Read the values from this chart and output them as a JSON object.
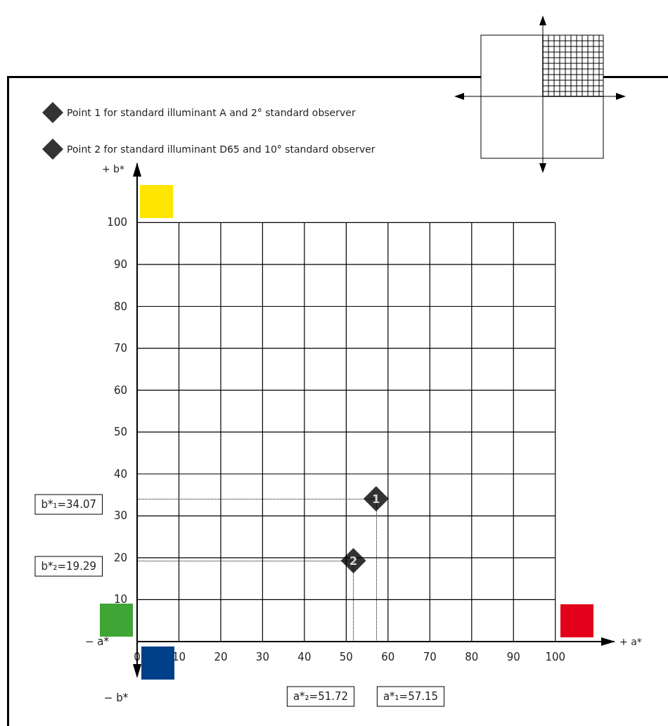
{
  "chart_data": {
    "type": "scatter",
    "xlabel": "+ a*",
    "ylabel": "+ b*",
    "series": [
      {
        "name": "Point 1 for standard illuminant A and 2° standard observer",
        "color": "#000000",
        "x": [
          57.15
        ],
        "values": [
          34.07
        ]
      },
      {
        "name": "Point 2 for standard illuminant D65 and 10° standard observer",
        "color": "#000000",
        "x": [
          51.72
        ],
        "values": [
          19.29
        ]
      }
    ],
    "xlim": [
      0,
      114
    ],
    "ylim": [
      0,
      114
    ],
    "xticks": [
      0,
      10,
      20,
      30,
      40,
      50,
      60,
      70,
      80,
      90,
      100
    ],
    "yticks": [
      {
        "value": 0,
        "label": null
      },
      10,
      20,
      30,
      40,
      50,
      60,
      70,
      80,
      90,
      100
    ],
    "annotations": [
      "− a*",
      "− b*",
      {
        "text": "1",
        "x": 57.15,
        "y": 34.07
      },
      {
        "text": "2",
        "x": 51.72,
        "y": 19.29
      },
      "b*₁=34.07",
      "b*₂=19.29",
      "a*₂=51.72",
      "a*₁=57.15"
    ],
    "grid": true,
    "legend": "top left",
    "marker": "diamond"
  }
}
